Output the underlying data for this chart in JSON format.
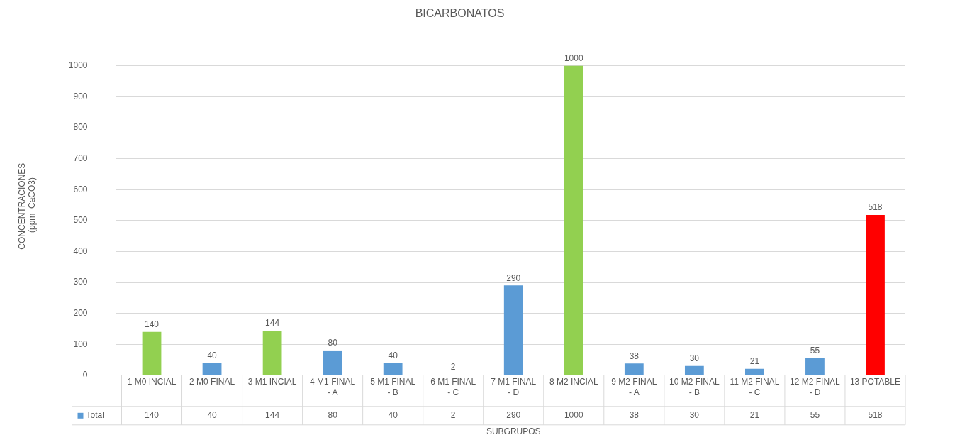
{
  "chart_data": {
    "type": "bar",
    "title": "BICARBONATOS",
    "xlabel": "SUBGRUPOS",
    "ylabel": "CONCENTRACIONES (ppm  CaCO3)",
    "categories": [
      "1 M0 INCIAL",
      "2 M0 FINAL",
      "3 M1 INCIAL",
      "4 M1 FINAL - A",
      "5 M1 FINAL - B",
      "6 M1 FINAL - C",
      "7 M1 FINAL - D",
      "8 M2 INCIAL",
      "9 M2 FINAL - A",
      "10 M2 FINAL - B",
      "11 M2 FINAL - C",
      "12 M2 FINAL - D",
      "13 POTABLE"
    ],
    "series": [
      {
        "name": "Total",
        "color": "#5b9bd5",
        "values": [
          140,
          40,
          144,
          80,
          40,
          2,
          290,
          1000,
          38,
          30,
          21,
          55,
          518
        ],
        "colors": [
          "#92d050",
          "#5b9bd5",
          "#92d050",
          "#5b9bd5",
          "#5b9bd5",
          "#5b9bd5",
          "#5b9bd5",
          "#92d050",
          "#5b9bd5",
          "#5b9bd5",
          "#5b9bd5",
          "#5b9bd5",
          "#ff0000"
        ]
      }
    ],
    "ylim": [
      0,
      1100
    ],
    "yticks": [
      0,
      100,
      200,
      300,
      400,
      500,
      600,
      700,
      800,
      900,
      1000,
      {
        "value": 1100,
        "label": null
      }
    ],
    "annotations": [
      "140",
      "40",
      "144",
      "80",
      "40",
      "2",
      "290",
      "1000",
      "38",
      "30",
      "21",
      "55",
      "518"
    ],
    "grid": "y",
    "legend": "bottom",
    "data_labels": true
  }
}
